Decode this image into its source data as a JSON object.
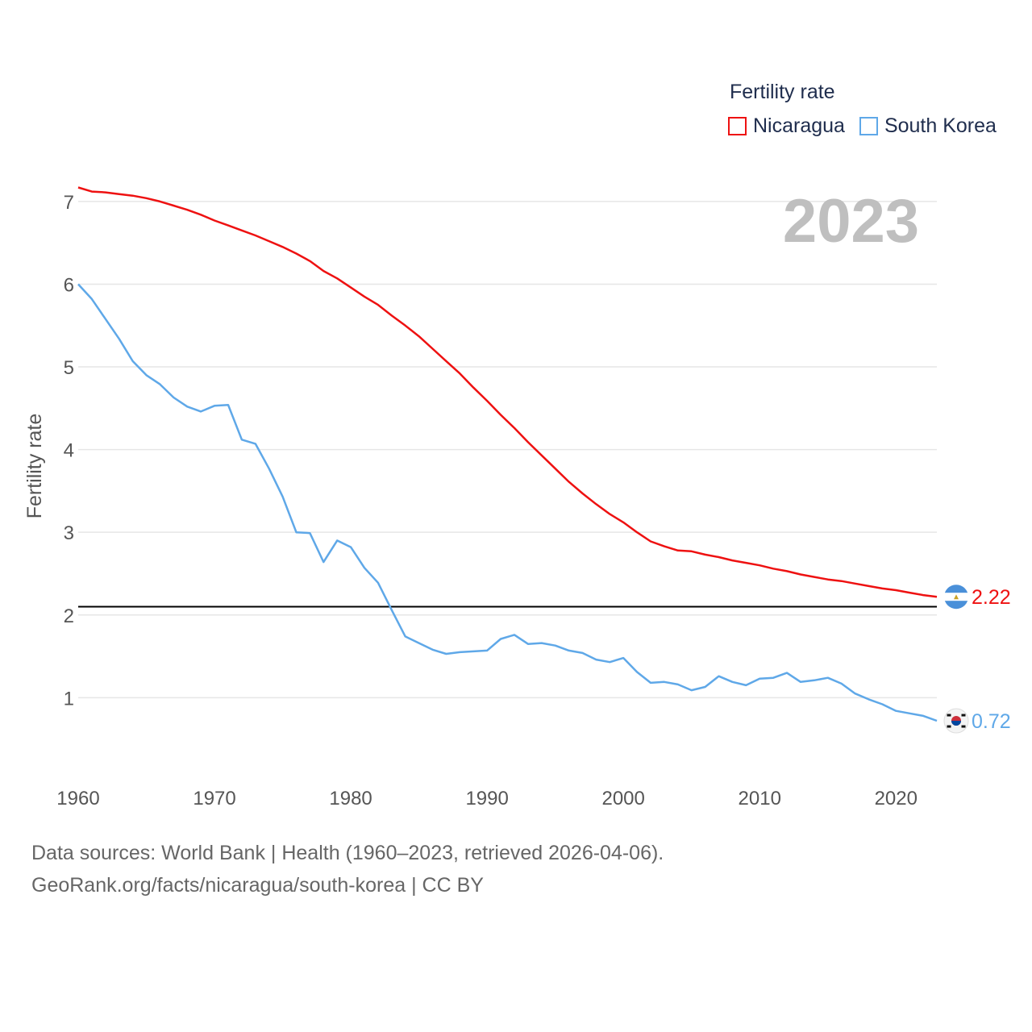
{
  "legend": {
    "title": "Fertility rate",
    "items": [
      {
        "label": "Nicaragua",
        "color": "#ee1111"
      },
      {
        "label": "South Korea",
        "color": "#5fa8e8"
      }
    ]
  },
  "source": {
    "line1": "Data sources: World Bank | Health (1960–2023, retrieved 2026-04-06).",
    "line2": "GeoRank.org/facts/nicaragua/south-korea | CC BY"
  },
  "chart_data": {
    "type": "line",
    "title": "Fertility rate",
    "year_label": "2023",
    "ylabel": "Fertility rate",
    "xlabel": "",
    "xlim": [
      1960,
      2023
    ],
    "ylim": [
      0.35,
      7.35
    ],
    "x_ticks": [
      "1960",
      "1970",
      "1980",
      "1990",
      "2000",
      "2010",
      "2020"
    ],
    "y_ticks": [
      "1",
      "2",
      "3",
      "4",
      "5",
      "6",
      "7"
    ],
    "reference_line": 2.1,
    "grid": true,
    "legend_position": "top-right",
    "x": [
      1960,
      1961,
      1962,
      1963,
      1964,
      1965,
      1966,
      1967,
      1968,
      1969,
      1970,
      1971,
      1972,
      1973,
      1974,
      1975,
      1976,
      1977,
      1978,
      1979,
      1980,
      1981,
      1982,
      1983,
      1984,
      1985,
      1986,
      1987,
      1988,
      1989,
      1990,
      1991,
      1992,
      1993,
      1994,
      1995,
      1996,
      1997,
      1998,
      1999,
      2000,
      2001,
      2002,
      2003,
      2004,
      2005,
      2006,
      2007,
      2008,
      2009,
      2010,
      2011,
      2012,
      2013,
      2014,
      2015,
      2016,
      2017,
      2018,
      2019,
      2020,
      2021,
      2022,
      2023
    ],
    "series": [
      {
        "name": "Nicaragua",
        "color": "#ee1111",
        "end_label": "2.22",
        "flag": "nicaragua-flag-icon",
        "values": [
          7.17,
          7.12,
          7.11,
          7.09,
          7.07,
          7.04,
          7.0,
          6.95,
          6.9,
          6.84,
          6.77,
          6.71,
          6.65,
          6.59,
          6.52,
          6.45,
          6.37,
          6.28,
          6.16,
          6.07,
          5.96,
          5.85,
          5.75,
          5.62,
          5.5,
          5.37,
          5.22,
          5.07,
          4.92,
          4.75,
          4.59,
          4.42,
          4.26,
          4.09,
          3.93,
          3.77,
          3.61,
          3.47,
          3.34,
          3.22,
          3.12,
          3.0,
          2.89,
          2.83,
          2.78,
          2.77,
          2.73,
          2.7,
          2.66,
          2.63,
          2.6,
          2.56,
          2.53,
          2.49,
          2.46,
          2.43,
          2.41,
          2.38,
          2.35,
          2.32,
          2.3,
          2.27,
          2.24,
          2.22
        ]
      },
      {
        "name": "South Korea",
        "color": "#5fa8e8",
        "end_label": "0.72",
        "flag": "south-korea-flag-icon",
        "values": [
          6.0,
          5.82,
          5.58,
          5.34,
          5.07,
          4.9,
          4.79,
          4.63,
          4.52,
          4.46,
          4.53,
          4.54,
          4.12,
          4.07,
          3.77,
          3.43,
          3.0,
          2.99,
          2.64,
          2.9,
          2.82,
          2.57,
          2.39,
          2.06,
          1.74,
          1.66,
          1.58,
          1.53,
          1.55,
          1.56,
          1.57,
          1.71,
          1.76,
          1.65,
          1.66,
          1.63,
          1.57,
          1.54,
          1.46,
          1.43,
          1.48,
          1.31,
          1.18,
          1.19,
          1.16,
          1.09,
          1.13,
          1.26,
          1.19,
          1.15,
          1.23,
          1.24,
          1.3,
          1.19,
          1.21,
          1.24,
          1.17,
          1.05,
          0.98,
          0.92,
          0.84,
          0.81,
          0.78,
          0.72
        ]
      }
    ]
  }
}
